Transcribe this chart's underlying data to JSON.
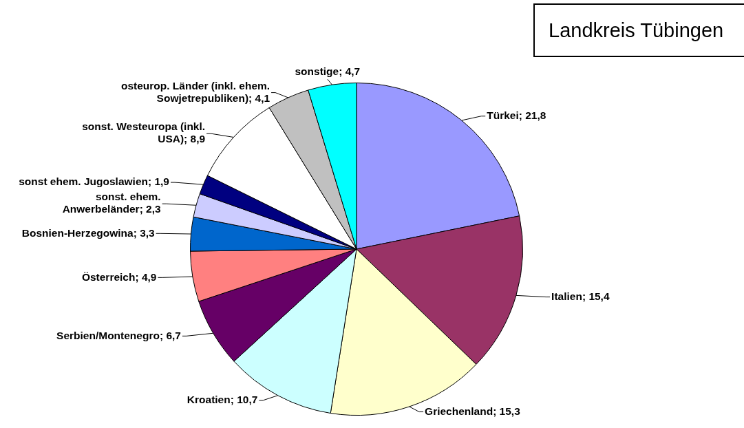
{
  "chart_data": {
    "type": "pie",
    "title": "Landkreis Tübingen",
    "categories": [
      "Türkei",
      "Italien",
      "Griechenland",
      "Kroatien",
      "Serbien/Montenegro",
      "Österreich",
      "Bosnien-Herzegowina",
      "sonst. ehem. Anwerbeländer",
      "sonst ehem. Jugoslawien",
      "sonst. Westeuropa (inkl. USA)",
      "osteurop. Länder (inkl. ehem. Sowjetrepubliken)",
      "sonstige"
    ],
    "values": [
      21.8,
      15.4,
      15.3,
      10.7,
      6.7,
      4.9,
      3.3,
      2.3,
      1.9,
      8.9,
      4.1,
      4.7
    ],
    "colors": [
      "#9999ff",
      "#993366",
      "#ffffcc",
      "#ccffff",
      "#660066",
      "#ff8080",
      "#0066cc",
      "#ccccff",
      "#000080",
      "#ffffff",
      "#c0c0c0",
      "#00ffff"
    ],
    "value_labels": [
      "21,8",
      "15,4",
      "15,3",
      "10,7",
      "6,7",
      "4,9",
      "3,3",
      "2,3",
      "1,9",
      "8,9",
      "4,1",
      "4,7"
    ],
    "legend": false
  }
}
